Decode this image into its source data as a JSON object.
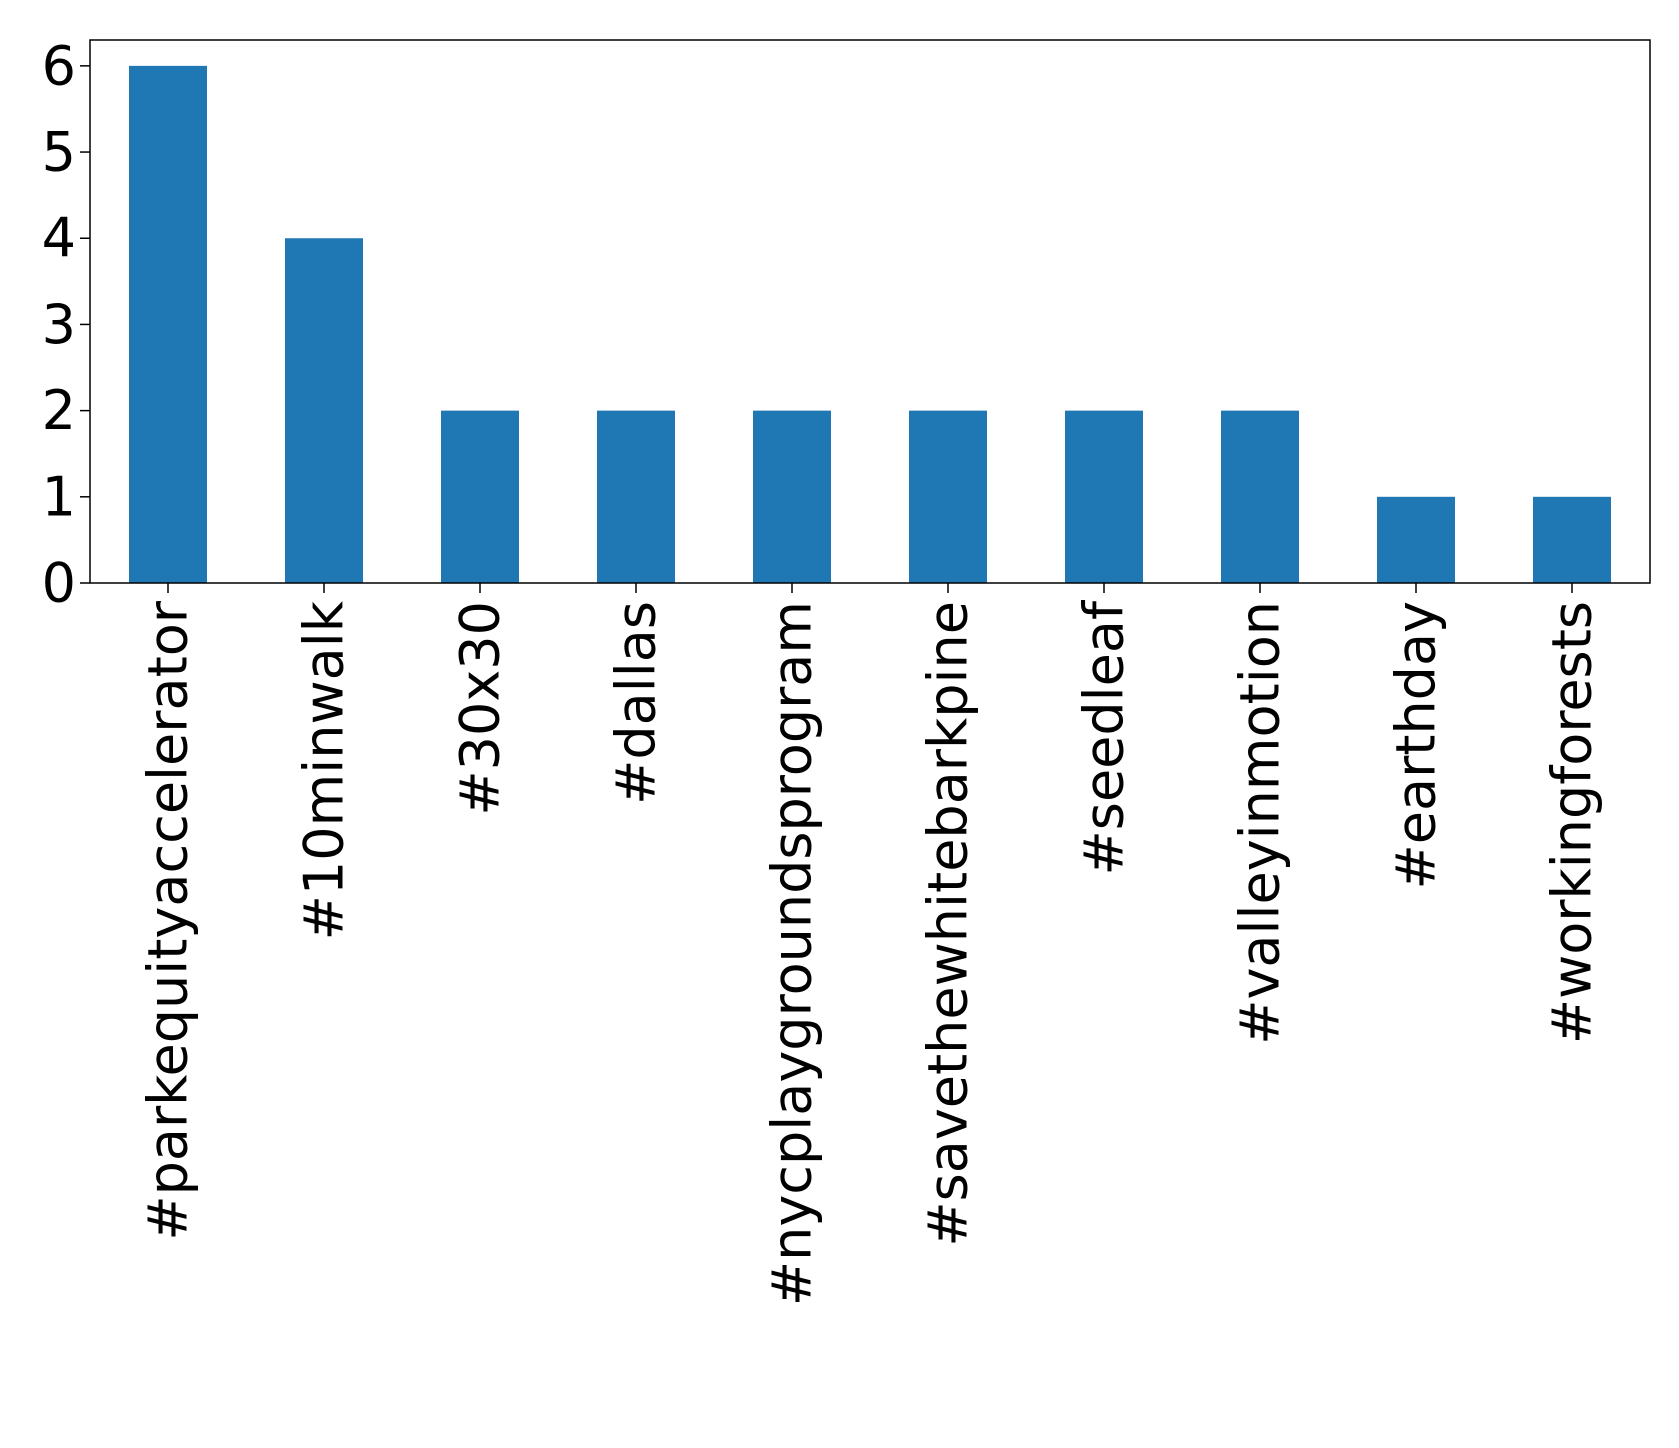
{
  "chart_data": {
    "type": "bar",
    "title": "",
    "xlabel": "",
    "ylabel": "",
    "categories": [
      "#parkequityaccelerator",
      "#10minwalk",
      "#30x30",
      "#dallas",
      "#nycplaygroundsprogram",
      "#savethewhitebarkpine",
      "#seedleaf",
      "#valleyinmotion",
      "#earthday",
      "#workingforests"
    ],
    "values": [
      6,
      4,
      2,
      2,
      2,
      2,
      2,
      2,
      1,
      1
    ],
    "ylim": [
      0,
      6.3
    ],
    "yticks": [
      0,
      1,
      2,
      3,
      4,
      5,
      6
    ],
    "grid": false,
    "legend": "none",
    "colors": {
      "bar": "#1f77b4",
      "axis": "#000000",
      "background": "#ffffff"
    }
  }
}
